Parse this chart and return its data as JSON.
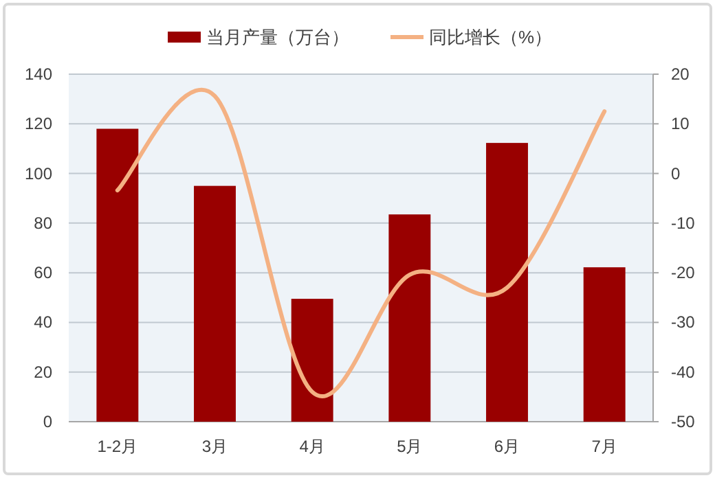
{
  "chart_data": {
    "type": "bar",
    "categories": [
      "1-2月",
      "3月",
      "4月",
      "5月",
      "6月",
      "7月"
    ],
    "series": [
      {
        "name": "当月产量（万台）",
        "color": "#990000",
        "values": [
          118,
          95,
          49.5,
          83.5,
          112.3,
          62.2
        ]
      },
      {
        "name": "同比增长（%）",
        "type": "line",
        "axis": "y2",
        "color": "#f4b183",
        "values": [
          -3.4,
          15.6,
          -44,
          -20.4,
          -23,
          12.5
        ]
      }
    ],
    "ylim": [
      0,
      140
    ],
    "yticks": [
      0,
      20,
      40,
      60,
      80,
      100,
      120,
      140
    ],
    "y2lim": [
      -50,
      20
    ],
    "y2ticks": [
      -50,
      -40,
      -30,
      -20,
      -10,
      0,
      10,
      20
    ],
    "grid": "y",
    "legend": "top",
    "marker": "none",
    "line_style": "solid"
  }
}
